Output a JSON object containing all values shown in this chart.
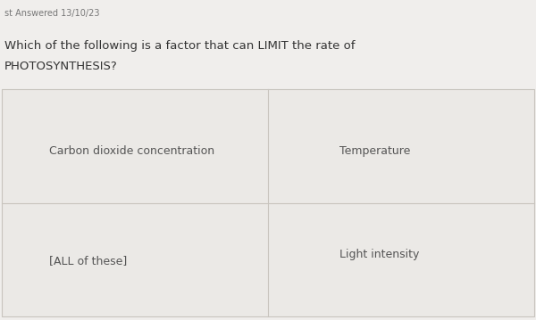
{
  "timestamp": "st Answered 13/10/23",
  "question_line1": "Which of the following is a factor that can LIMIT the rate of",
  "question_line2": "PHOTOSYNTHESIS?",
  "options": [
    {
      "text": "Carbon dioxide concentration",
      "col": 0,
      "row": 0,
      "halign": "left"
    },
    {
      "text": "Temperature",
      "col": 1,
      "row": 0,
      "halign": "left"
    },
    {
      "text": "[ALL of these]",
      "col": 0,
      "row": 1,
      "halign": "left"
    },
    {
      "text": "Light intensity",
      "col": 1,
      "row": 1,
      "halign": "left"
    }
  ],
  "bg_color": "#f0eeec",
  "cell_color": "#ebe9e6",
  "cell_border_color": "#c8c4be",
  "text_color": "#555555",
  "timestamp_color": "#777777",
  "question_color": "#333333",
  "fig_width": 6.0,
  "fig_height": 3.59,
  "dpi": 100
}
